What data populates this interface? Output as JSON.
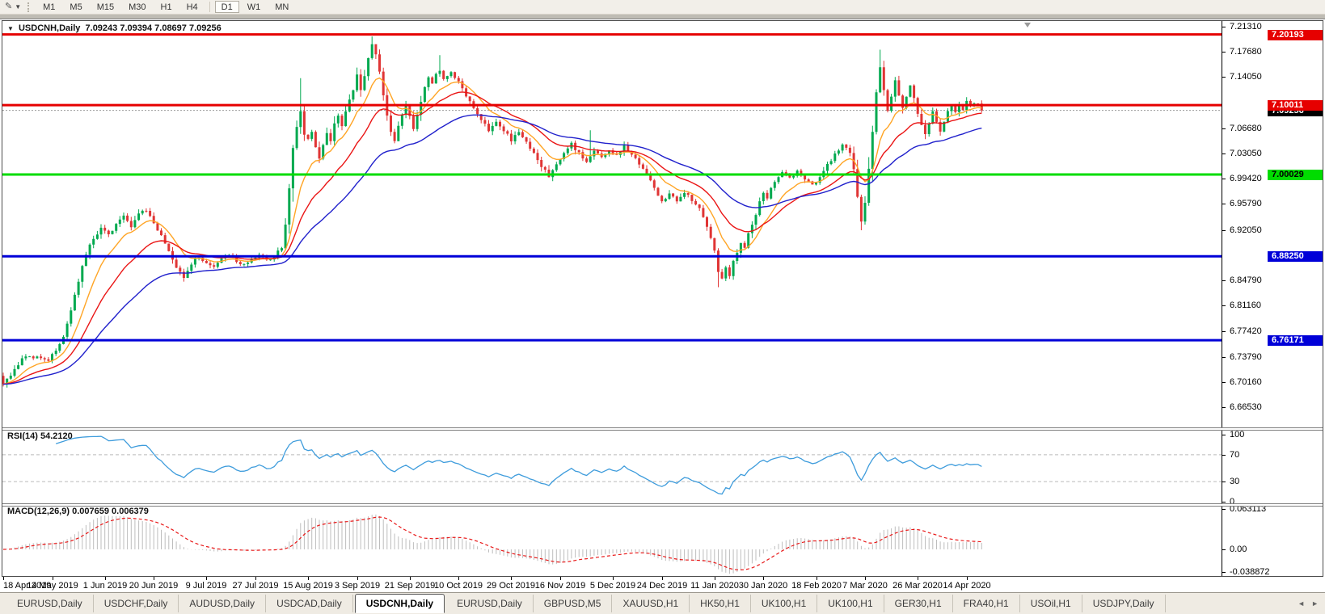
{
  "toolbar": {
    "timeframes": [
      "M1",
      "M5",
      "M15",
      "M30",
      "H1",
      "H4",
      "D1",
      "W1",
      "MN"
    ],
    "active_timeframe": "D1"
  },
  "window": {
    "header_symbol": "USDCNH,Daily",
    "header_ohlc": "7.09243 7.09394 7.08697 7.09256"
  },
  "rsi_panel": {
    "title": "RSI(14)",
    "value": "54.2120"
  },
  "macd_panel": {
    "title": "MACD(12,26,9)",
    "values": "0.007659 0.006379"
  },
  "chart_data": {
    "type": "candlestick",
    "symbol": "USDCNH",
    "timeframe": "Daily",
    "ohlc_display": {
      "open": "7.09243",
      "high": "7.09394",
      "low": "7.08697",
      "close": "7.09256"
    },
    "n_candles": 261,
    "candle_colors": {
      "up": "#00A94F",
      "down": "#E03535"
    },
    "y_axis": {
      "ticks": [
        "7.21310",
        "7.17680",
        "7.14050",
        "7.06680",
        "7.03050",
        "6.99420",
        "6.95790",
        "6.92050",
        "6.84790",
        "6.81160",
        "6.77420",
        "6.73790",
        "6.70160",
        "6.66530"
      ]
    },
    "x_dates": [
      {
        "label": "18 Apr 2019",
        "candle": 0
      },
      {
        "label": "14 May 2019",
        "candle": 13
      },
      {
        "label": "1 Jun 2019",
        "candle": 27
      },
      {
        "label": "20 Jun 2019",
        "candle": 40
      },
      {
        "label": "9 Jul 2019",
        "candle": 54
      },
      {
        "label": "27 Jul 2019",
        "candle": 67
      },
      {
        "label": "15 Aug 2019",
        "candle": 81
      },
      {
        "label": "3 Sep 2019",
        "candle": 94
      },
      {
        "label": "21 Sep 2019",
        "candle": 108
      },
      {
        "label": "10 Oct 2019",
        "candle": 121
      },
      {
        "label": "29 Oct 2019",
        "candle": 135
      },
      {
        "label": "16 Nov 2019",
        "candle": 148
      },
      {
        "label": "5 Dec 2019",
        "candle": 162
      },
      {
        "label": "24 Dec 2019",
        "candle": 175
      },
      {
        "label": "11 Jan 2020",
        "candle": 189
      },
      {
        "label": "30 Jan 2020",
        "candle": 202
      },
      {
        "label": "18 Feb 2020",
        "candle": 216
      },
      {
        "label": "7 Mar 2020",
        "candle": 229
      },
      {
        "label": "26 Mar 2020",
        "candle": 243
      },
      {
        "label": "14 Apr 2020",
        "candle": 256
      }
    ],
    "close_path": [
      [
        0,
        6.698
      ],
      [
        2,
        6.71
      ],
      [
        4,
        6.728
      ],
      [
        6,
        6.74
      ],
      [
        8,
        6.735
      ],
      [
        10,
        6.738
      ],
      [
        12,
        6.732
      ],
      [
        14,
        6.748
      ],
      [
        16,
        6.765
      ],
      [
        18,
        6.805
      ],
      [
        20,
        6.848
      ],
      [
        22,
        6.885
      ],
      [
        24,
        6.91
      ],
      [
        26,
        6.922
      ],
      [
        28,
        6.912
      ],
      [
        30,
        6.93
      ],
      [
        32,
        6.94
      ],
      [
        34,
        6.925
      ],
      [
        36,
        6.945
      ],
      [
        38,
        6.95
      ],
      [
        40,
        6.932
      ],
      [
        42,
        6.912
      ],
      [
        44,
        6.888
      ],
      [
        46,
        6.865
      ],
      [
        48,
        6.852
      ],
      [
        50,
        6.872
      ],
      [
        52,
        6.882
      ],
      [
        54,
        6.872
      ],
      [
        56,
        6.866
      ],
      [
        58,
        6.878
      ],
      [
        60,
        6.885
      ],
      [
        62,
        6.876
      ],
      [
        64,
        6.869
      ],
      [
        66,
        6.879
      ],
      [
        68,
        6.886
      ],
      [
        70,
        6.877
      ],
      [
        72,
        6.882
      ],
      [
        74,
        6.895
      ],
      [
        75,
        6.928
      ],
      [
        76,
        6.982
      ],
      [
        77,
        7.038
      ],
      [
        78,
        7.07
      ],
      [
        79,
        7.092
      ],
      [
        80,
        7.06
      ],
      [
        81,
        7.05
      ],
      [
        82,
        7.063
      ],
      [
        83,
        7.04
      ],
      [
        84,
        7.025
      ],
      [
        85,
        7.045
      ],
      [
        86,
        7.06
      ],
      [
        87,
        7.048
      ],
      [
        88,
        7.074
      ],
      [
        89,
        7.086
      ],
      [
        90,
        7.07
      ],
      [
        91,
        7.09
      ],
      [
        92,
        7.106
      ],
      [
        93,
        7.124
      ],
      [
        94,
        7.146
      ],
      [
        95,
        7.12
      ],
      [
        96,
        7.14
      ],
      [
        97,
        7.17
      ],
      [
        98,
        7.19
      ],
      [
        99,
        7.174
      ],
      [
        100,
        7.148
      ],
      [
        101,
        7.115
      ],
      [
        102,
        7.085
      ],
      [
        103,
        7.064
      ],
      [
        104,
        7.05
      ],
      [
        105,
        7.07
      ],
      [
        106,
        7.086
      ],
      [
        107,
        7.098
      ],
      [
        108,
        7.084
      ],
      [
        109,
        7.068
      ],
      [
        110,
        7.085
      ],
      [
        111,
        7.105
      ],
      [
        112,
        7.128
      ],
      [
        113,
        7.142
      ],
      [
        114,
        7.13
      ],
      [
        115,
        7.146
      ],
      [
        116,
        7.152
      ],
      [
        117,
        7.138
      ],
      [
        119,
        7.148
      ],
      [
        121,
        7.134
      ],
      [
        123,
        7.112
      ],
      [
        125,
        7.095
      ],
      [
        127,
        7.08
      ],
      [
        129,
        7.064
      ],
      [
        131,
        7.076
      ],
      [
        133,
        7.064
      ],
      [
        135,
        7.05
      ],
      [
        137,
        7.063
      ],
      [
        139,
        7.048
      ],
      [
        141,
        7.032
      ],
      [
        143,
        7.012
      ],
      [
        145,
        6.998
      ],
      [
        147,
        7.014
      ],
      [
        149,
        7.03
      ],
      [
        151,
        7.044
      ],
      [
        153,
        7.03
      ],
      [
        155,
        7.016
      ],
      [
        157,
        7.034
      ],
      [
        159,
        7.024
      ],
      [
        161,
        7.034
      ],
      [
        163,
        7.03
      ],
      [
        165,
        7.04
      ],
      [
        167,
        7.03
      ],
      [
        169,
        7.016
      ],
      [
        171,
        6.999
      ],
      [
        173,
        6.98
      ],
      [
        175,
        6.96
      ],
      [
        177,
        6.974
      ],
      [
        179,
        6.964
      ],
      [
        181,
        6.974
      ],
      [
        183,
        6.964
      ],
      [
        185,
        6.95
      ],
      [
        187,
        6.926
      ],
      [
        189,
        6.89
      ],
      [
        190,
        6.86
      ],
      [
        191,
        6.85
      ],
      [
        192,
        6.864
      ],
      [
        193,
        6.856
      ],
      [
        194,
        6.874
      ],
      [
        195,
        6.89
      ],
      [
        196,
        6.904
      ],
      [
        197,
        6.896
      ],
      [
        198,
        6.914
      ],
      [
        199,
        6.93
      ],
      [
        200,
        6.944
      ],
      [
        201,
        6.96
      ],
      [
        202,
        6.974
      ],
      [
        203,
        6.964
      ],
      [
        204,
        6.98
      ],
      [
        205,
        6.99
      ],
      [
        207,
        7.004
      ],
      [
        209,
        6.994
      ],
      [
        211,
        7.006
      ],
      [
        213,
        6.994
      ],
      [
        215,
        6.984
      ],
      [
        217,
        6.998
      ],
      [
        219,
        7.014
      ],
      [
        221,
        7.03
      ],
      [
        223,
        7.044
      ],
      [
        225,
        7.03
      ],
      [
        226,
        7.006
      ],
      [
        227,
        6.966
      ],
      [
        228,
        6.934
      ],
      [
        229,
        6.96
      ],
      [
        230,
        7.01
      ],
      [
        231,
        7.064
      ],
      [
        232,
        7.118
      ],
      [
        233,
        7.154
      ],
      [
        234,
        7.12
      ],
      [
        235,
        7.094
      ],
      [
        236,
        7.114
      ],
      [
        237,
        7.134
      ],
      [
        238,
        7.116
      ],
      [
        239,
        7.096
      ],
      [
        240,
        7.114
      ],
      [
        241,
        7.126
      ],
      [
        242,
        7.11
      ],
      [
        243,
        7.09
      ],
      [
        244,
        7.074
      ],
      [
        245,
        7.06
      ],
      [
        246,
        7.076
      ],
      [
        247,
        7.09
      ],
      [
        248,
        7.076
      ],
      [
        249,
        7.064
      ],
      [
        250,
        7.076
      ],
      [
        251,
        7.09
      ],
      [
        252,
        7.1
      ],
      [
        253,
        7.09
      ],
      [
        254,
        7.1
      ],
      [
        255,
        7.094
      ],
      [
        256,
        7.104
      ],
      [
        257,
        7.098
      ],
      [
        258,
        7.104
      ],
      [
        259,
        7.1
      ],
      [
        260,
        7.0926
      ]
    ],
    "wick_extremes": [
      {
        "i": 79,
        "h": 7.139
      },
      {
        "i": 98,
        "h": 7.199
      },
      {
        "i": 116,
        "h": 7.172
      },
      {
        "i": 156,
        "h": 7.064
      },
      {
        "i": 190,
        "l": 6.838
      },
      {
        "i": 228,
        "l": 6.92
      },
      {
        "i": 233,
        "h": 7.18
      }
    ],
    "horizontal_levels": [
      {
        "label": "7.20193",
        "price": 7.20193,
        "line": "#E60000",
        "badge": "#E60000",
        "fg": "#ffffff",
        "width": 3
      },
      {
        "label": "7.10011",
        "price": 7.10011,
        "line": "#E60000",
        "badge": "#E60000",
        "fg": "#ffffff",
        "width": 3
      },
      {
        "label": "7.00029",
        "price": 7.00029,
        "line": "#00DC00",
        "badge": "#00DC00",
        "fg": "#000000",
        "width": 3
      },
      {
        "label": "6.88250",
        "price": 6.8825,
        "line": "#0000D8",
        "badge": "#0000D8",
        "fg": "#ffffff",
        "width": 3
      },
      {
        "label": "6.76171",
        "price": 6.76171,
        "line": "#0000D8",
        "badge": "#0000D8",
        "fg": "#ffffff",
        "width": 3
      }
    ],
    "current_price": {
      "label": "7.09256",
      "value": 7.09256,
      "badge": "#000000",
      "fg": "#ffffff",
      "line_color": "#9a9a9a"
    },
    "moving_averages": [
      {
        "name": "fast",
        "period": 10,
        "color": "#FFA526"
      },
      {
        "name": "medium",
        "period": 22,
        "color": "#EA1515"
      },
      {
        "name": "slow",
        "period": 45,
        "color": "#2121CC"
      }
    ],
    "rsi": {
      "period": 14,
      "current": 54.212,
      "dashed_levels": [
        70,
        30
      ],
      "scale": [
        "100",
        "70",
        "30",
        "0"
      ],
      "color": "#3E9CDC",
      "level_color": "#BBBBBB"
    },
    "macd": {
      "fast": 12,
      "slow": 26,
      "signal": 9,
      "current_macd": 0.007659,
      "current_signal": 0.006379,
      "scale": [
        {
          "label": "0.063113",
          "v": 0.063113
        },
        {
          "label": "0.00",
          "v": 0
        },
        {
          "label": "-0.038872",
          "v": -0.038872
        }
      ],
      "hist_color": "#BDBDBD",
      "signal_color": "#E81717"
    }
  },
  "tabs": [
    {
      "label": "EURUSD,Daily"
    },
    {
      "label": "USDCHF,Daily"
    },
    {
      "label": "AUDUSD,Daily"
    },
    {
      "label": "USDCAD,Daily"
    },
    {
      "label": "USDCNH,Daily",
      "active": true
    },
    {
      "label": "EURUSD,Daily"
    },
    {
      "label": "GBPUSD,M5"
    },
    {
      "label": "XAUUSD,H1"
    },
    {
      "label": "HK50,H1"
    },
    {
      "label": "UK100,H1"
    },
    {
      "label": "UK100,H1"
    },
    {
      "label": "GER30,H1"
    },
    {
      "label": "FRA40,H1"
    },
    {
      "label": "USOil,H1"
    },
    {
      "label": "USDJPY,Daily"
    }
  ],
  "nav": {
    "left": "◄",
    "right": "►"
  }
}
